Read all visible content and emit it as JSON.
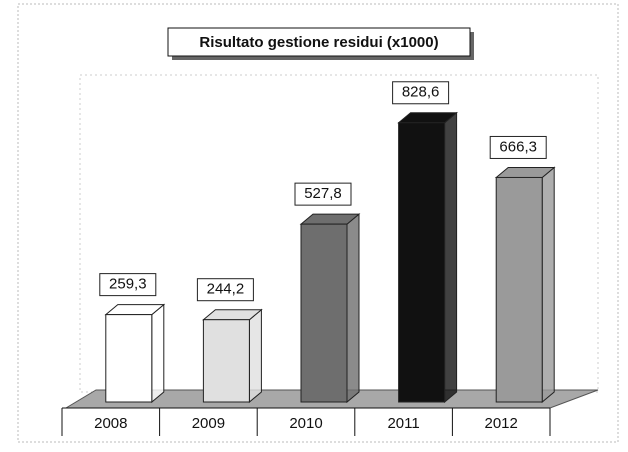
{
  "chart_data": {
    "type": "bar3d",
    "title": "Risultato gestione residui (x1000)",
    "categories": [
      "2008",
      "2009",
      "2010",
      "2011",
      "2012"
    ],
    "values": [
      259.3,
      244.2,
      527.8,
      828.6,
      666.3
    ],
    "value_labels": [
      "259,3",
      "244,2",
      "527,8",
      "828,6",
      "666,3"
    ],
    "colors": [
      "#ffffff",
      "#e0e0e0",
      "#6e6e6e",
      "#111111",
      "#9a9a9a"
    ],
    "ylim": [
      0,
      1000
    ]
  }
}
